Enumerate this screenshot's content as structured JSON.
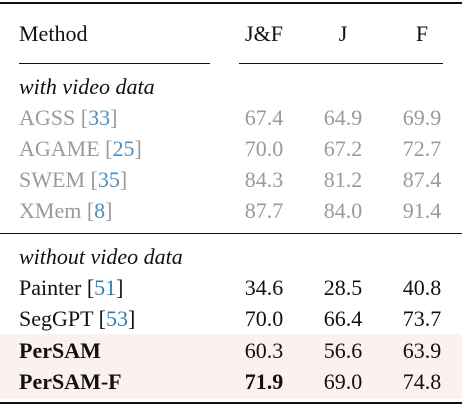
{
  "header": {
    "method": "Method",
    "col1": "J&F",
    "col2": "J",
    "col3": "F"
  },
  "groups": [
    {
      "label": "with video data",
      "rows": [
        {
          "name": "AGSS",
          "ref": "33",
          "jf": "67.4",
          "j": "64.9",
          "f": "69.9"
        },
        {
          "name": "AGAME",
          "ref": "25",
          "jf": "70.0",
          "j": "67.2",
          "f": "72.7"
        },
        {
          "name": "SWEM",
          "ref": "35",
          "jf": "84.3",
          "j": "81.2",
          "f": "87.4"
        },
        {
          "name": "XMem",
          "ref": "8",
          "jf": "87.7",
          "j": "84.0",
          "f": "91.4"
        }
      ]
    },
    {
      "label": "without video data",
      "rows": [
        {
          "name": "Painter",
          "ref": "51",
          "jf": "34.6",
          "j": "28.5",
          "f": "40.8"
        },
        {
          "name": "SegGPT",
          "ref": "53",
          "jf": "70.0",
          "j": "66.4",
          "f": "73.7"
        },
        {
          "name": "PerSAM",
          "jf": "60.3",
          "j": "56.6",
          "f": "63.9"
        },
        {
          "name": "PerSAM-F",
          "jf": "71.9",
          "j": "69.0",
          "f": "74.8"
        }
      ]
    }
  ],
  "colors": {
    "highlight_row": "#fbf1f0",
    "reference_link": "#2f7fb8",
    "muted_text": "#9a9a9a"
  }
}
